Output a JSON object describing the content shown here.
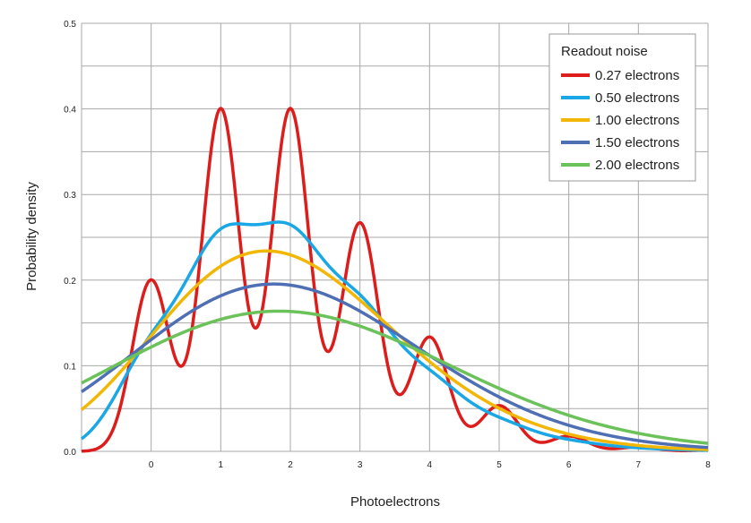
{
  "chart_data": {
    "type": "line",
    "title": "",
    "xlabel": "Photoelectrons",
    "ylabel": "Probability density",
    "xlim": [
      -1,
      8
    ],
    "ylim": [
      0,
      0.5
    ],
    "x_ticks": [
      "0",
      "1",
      "2",
      "3",
      "4",
      "5",
      "6",
      "7",
      "8"
    ],
    "y_ticks": [
      "0.0",
      "0.1",
      "0.2",
      "0.3",
      "0.4",
      "0.5"
    ],
    "grid": true,
    "legend": {
      "title": "Readout noise",
      "placement": "top-right"
    },
    "model": {
      "type": "poisson_gaussian_mixture",
      "mean_photoelectrons": 2
    },
    "series": [
      {
        "name": "0.27 electrons",
        "sigma": 0.27,
        "color": "#dd1c1c"
      },
      {
        "name": "0.50 electrons",
        "sigma": 0.5,
        "color": "#1aa7e6"
      },
      {
        "name": "1.00 electrons",
        "sigma": 1.0,
        "color": "#f2b705"
      },
      {
        "name": "1.50 electrons",
        "sigma": 1.5,
        "color": "#4f6fb5"
      },
      {
        "name": "2.00 electrons",
        "sigma": 2.0,
        "color": "#6cc25a"
      }
    ]
  }
}
